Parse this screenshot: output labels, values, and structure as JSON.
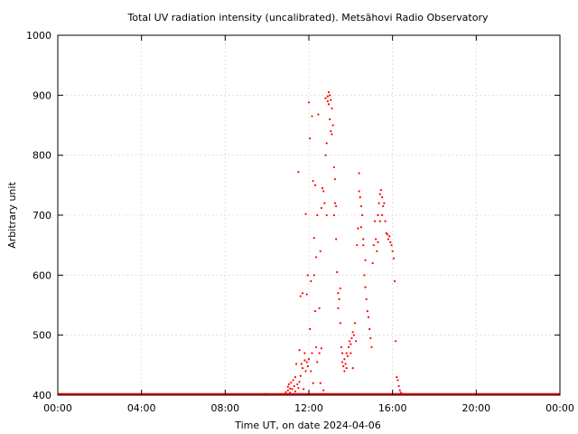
{
  "chart_data": {
    "type": "scatter",
    "title": "Total UV radiation intensity (uncalibrated). Metsähovi Radio Observatory",
    "xlabel": "Time UT, on date 2024-04-06",
    "ylabel": "Arbitrary unit",
    "x_unit": "hours UT",
    "xlim": [
      0,
      24
    ],
    "ylim": [
      400,
      1000
    ],
    "x_ticks": [
      {
        "value": 0,
        "label": "00:00"
      },
      {
        "value": 4,
        "label": "04:00"
      },
      {
        "value": 8,
        "label": "08:00"
      },
      {
        "value": 12,
        "label": "12:00"
      },
      {
        "value": 16,
        "label": "16:00"
      },
      {
        "value": 20,
        "label": "20:00"
      },
      {
        "value": 24,
        "label": "00:00"
      }
    ],
    "y_ticks": [
      {
        "value": 400,
        "label": "400"
      },
      {
        "value": 500,
        "label": "500"
      },
      {
        "value": 600,
        "label": "600"
      },
      {
        "value": 700,
        "label": "700"
      },
      {
        "value": 800,
        "label": "800"
      },
      {
        "value": 900,
        "label": "900"
      },
      {
        "value": 1000,
        "label": "1000"
      }
    ],
    "grid": true,
    "series": [
      {
        "color": "#ff0000",
        "baseline": {
          "x_start": 0,
          "x_end": 24,
          "y": 400
        },
        "points": [
          [
            9.9,
            402
          ],
          [
            10.8,
            402
          ],
          [
            10.9,
            405
          ],
          [
            11.0,
            408
          ],
          [
            11.0,
            414
          ],
          [
            11.05,
            418
          ],
          [
            11.1,
            411
          ],
          [
            11.1,
            404
          ],
          [
            11.15,
            421
          ],
          [
            11.2,
            410
          ],
          [
            11.25,
            425
          ],
          [
            11.3,
            415
          ],
          [
            11.35,
            430
          ],
          [
            11.35,
            406
          ],
          [
            11.4,
            452
          ],
          [
            11.45,
            418
          ],
          [
            11.5,
            772
          ],
          [
            11.5,
            412
          ],
          [
            11.55,
            475
          ],
          [
            11.55,
            422
          ],
          [
            11.6,
            565
          ],
          [
            11.6,
            432
          ],
          [
            11.65,
            452
          ],
          [
            11.7,
            570
          ],
          [
            11.7,
            445
          ],
          [
            11.75,
            410
          ],
          [
            11.8,
            470
          ],
          [
            11.8,
            458
          ],
          [
            11.85,
            702
          ],
          [
            11.85,
            440
          ],
          [
            11.9,
            568
          ],
          [
            11.9,
            455
          ],
          [
            11.95,
            600
          ],
          [
            11.95,
            448
          ],
          [
            12.0,
            888
          ],
          [
            12.0,
            460
          ],
          [
            12.05,
            828
          ],
          [
            12.05,
            510
          ],
          [
            12.1,
            590
          ],
          [
            12.1,
            440
          ],
          [
            12.15,
            865
          ],
          [
            12.15,
            470
          ],
          [
            12.2,
            757
          ],
          [
            12.2,
            420
          ],
          [
            12.25,
            662
          ],
          [
            12.25,
            600
          ],
          [
            12.3,
            750
          ],
          [
            12.3,
            540
          ],
          [
            12.35,
            630
          ],
          [
            12.35,
            480
          ],
          [
            12.4,
            700
          ],
          [
            12.4,
            455
          ],
          [
            12.45,
            868
          ],
          [
            12.5,
            545
          ],
          [
            12.5,
            470
          ],
          [
            12.55,
            640
          ],
          [
            12.55,
            420
          ],
          [
            12.6,
            712
          ],
          [
            12.6,
            478
          ],
          [
            12.65,
            745
          ],
          [
            12.7,
            740
          ],
          [
            12.7,
            408
          ],
          [
            12.75,
            720
          ],
          [
            12.8,
            800
          ],
          [
            12.8,
            895
          ],
          [
            12.85,
            820
          ],
          [
            12.85,
            700
          ],
          [
            12.9,
            898
          ],
          [
            12.9,
            890
          ],
          [
            12.95,
            905
          ],
          [
            12.95,
            885
          ],
          [
            13.0,
            900
          ],
          [
            13.0,
            860
          ],
          [
            13.05,
            892
          ],
          [
            13.05,
            840
          ],
          [
            13.1,
            878
          ],
          [
            13.1,
            835
          ],
          [
            13.15,
            850
          ],
          [
            13.2,
            780
          ],
          [
            13.2,
            700
          ],
          [
            13.25,
            760
          ],
          [
            13.25,
            720
          ],
          [
            13.3,
            660
          ],
          [
            13.3,
            715
          ],
          [
            13.35,
            605
          ],
          [
            13.4,
            570
          ],
          [
            13.4,
            545
          ],
          [
            13.45,
            560
          ],
          [
            13.5,
            578
          ],
          [
            13.5,
            520
          ],
          [
            13.55,
            480
          ],
          [
            13.6,
            470
          ],
          [
            13.6,
            455
          ],
          [
            13.65,
            448
          ],
          [
            13.7,
            460
          ],
          [
            13.7,
            440
          ],
          [
            13.75,
            452
          ],
          [
            13.8,
            470
          ],
          [
            13.8,
            445
          ],
          [
            13.85,
            465
          ],
          [
            13.9,
            480
          ],
          [
            13.95,
            490
          ],
          [
            14.0,
            485
          ],
          [
            14.0,
            470
          ],
          [
            14.05,
            495
          ],
          [
            14.1,
            505
          ],
          [
            14.1,
            445
          ],
          [
            14.15,
            500
          ],
          [
            14.2,
            520
          ],
          [
            14.25,
            490
          ],
          [
            14.3,
            650
          ],
          [
            14.35,
            678
          ],
          [
            14.4,
            740
          ],
          [
            14.4,
            770
          ],
          [
            14.45,
            730
          ],
          [
            14.5,
            715
          ],
          [
            14.5,
            680
          ],
          [
            14.55,
            700
          ],
          [
            14.6,
            660
          ],
          [
            14.6,
            650
          ],
          [
            14.65,
            600
          ],
          [
            14.7,
            625
          ],
          [
            14.7,
            580
          ],
          [
            14.75,
            560
          ],
          [
            14.8,
            540
          ],
          [
            14.85,
            530
          ],
          [
            14.9,
            510
          ],
          [
            14.95,
            495
          ],
          [
            15.0,
            480
          ],
          [
            15.05,
            620
          ],
          [
            15.1,
            650
          ],
          [
            15.15,
            690
          ],
          [
            15.2,
            660
          ],
          [
            15.25,
            640
          ],
          [
            15.3,
            700
          ],
          [
            15.3,
            655
          ],
          [
            15.35,
            720
          ],
          [
            15.4,
            735
          ],
          [
            15.4,
            690
          ],
          [
            15.45,
            742
          ],
          [
            15.5,
            730
          ],
          [
            15.5,
            700
          ],
          [
            15.55,
            715
          ],
          [
            15.6,
            720
          ],
          [
            15.65,
            690
          ],
          [
            15.7,
            670
          ],
          [
            15.75,
            668
          ],
          [
            15.8,
            660
          ],
          [
            15.85,
            665
          ],
          [
            15.9,
            655
          ],
          [
            15.95,
            650
          ],
          [
            16.0,
            640
          ],
          [
            16.05,
            628
          ],
          [
            16.1,
            590
          ],
          [
            16.15,
            490
          ],
          [
            16.2,
            430
          ],
          [
            16.25,
            425
          ],
          [
            16.3,
            415
          ],
          [
            16.35,
            408
          ],
          [
            16.4,
            404
          ],
          [
            16.5,
            402
          ]
        ]
      }
    ]
  }
}
